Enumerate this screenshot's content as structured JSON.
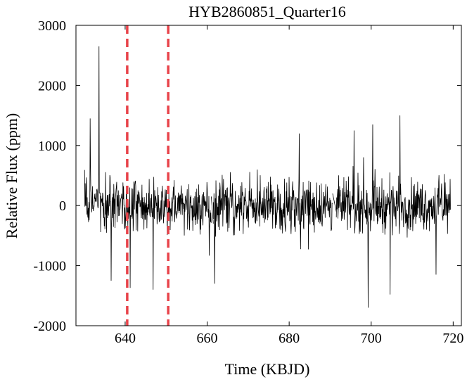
{
  "chart_data": {
    "type": "line",
    "title": "HYB2860851_Quarter16",
    "xlabel": "Time (KBJD)",
    "ylabel": "Relative Flux (ppm)",
    "xlim": [
      628,
      722
    ],
    "ylim": [
      -2000,
      3000
    ],
    "xticks": [
      640,
      660,
      680,
      700,
      720
    ],
    "yticks": [
      3000,
      2000,
      1000,
      0,
      -1000,
      -2000
    ],
    "grid": false,
    "line_color": "#000000",
    "marker_color": "#e8434a",
    "vertical_markers": [
      640.5,
      650.5
    ],
    "segments": [
      [
        630.1,
        661.0
      ],
      [
        661.5,
        690.6
      ],
      [
        691.5,
        719.4
      ]
    ],
    "noise_envelope": [
      [
        630,
        -600,
        600
      ],
      [
        635,
        -620,
        620
      ],
      [
        640,
        -650,
        650
      ],
      [
        645,
        -650,
        650
      ],
      [
        650,
        -640,
        640
      ],
      [
        655,
        -620,
        620
      ],
      [
        660,
        -650,
        650
      ],
      [
        665,
        -650,
        650
      ],
      [
        670,
        -650,
        650
      ],
      [
        675,
        -650,
        650
      ],
      [
        680,
        -650,
        650
      ],
      [
        685,
        -650,
        650
      ],
      [
        690,
        -640,
        640
      ],
      [
        695,
        -600,
        600
      ],
      [
        700,
        -620,
        620
      ],
      [
        705,
        -640,
        640
      ],
      [
        710,
        -620,
        620
      ],
      [
        715,
        -600,
        600
      ],
      [
        719,
        -600,
        600
      ]
    ],
    "spikes": [
      [
        633.6,
        2650
      ],
      [
        699.3,
        -1700
      ],
      [
        704.6,
        -1480
      ],
      [
        646.8,
        -1400
      ],
      [
        641.2,
        -1370
      ],
      [
        631.5,
        1450
      ],
      [
        707.0,
        1500
      ],
      [
        661.8,
        -1300
      ],
      [
        636.6,
        -1250
      ],
      [
        715.8,
        -1150
      ],
      [
        695.8,
        1250
      ],
      [
        682.5,
        1200
      ],
      [
        700.4,
        1350
      ]
    ],
    "sample_step": 0.08
  }
}
